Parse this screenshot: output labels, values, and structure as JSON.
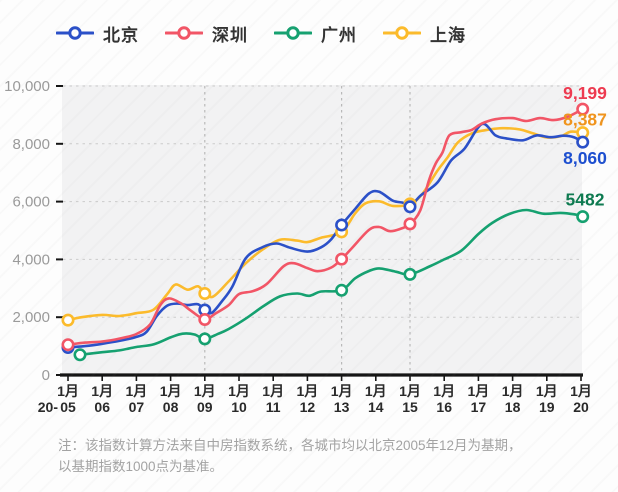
{
  "legend": [
    {
      "id": "beijing",
      "label": "北京",
      "color": "#2b50c8"
    },
    {
      "id": "shenzhen",
      "label": "深圳",
      "color": "#f25566"
    },
    {
      "id": "guangzhou",
      "label": "广州",
      "color": "#15a170"
    },
    {
      "id": "shanghai",
      "label": "上海",
      "color": "#fcbb2b"
    }
  ],
  "chart_data": {
    "type": "line",
    "title": "",
    "ylabel": "",
    "xlabel": "",
    "y_axis": {
      "range": [
        0,
        10000
      ],
      "ticks": [
        {
          "value": 0,
          "label": "0"
        },
        {
          "value": 2000,
          "label": "2,000"
        },
        {
          "value": 4000,
          "label": "4,000"
        },
        {
          "value": 6000,
          "label": "6,000"
        },
        {
          "value": 8000,
          "label": "8,000"
        },
        {
          "value": 10000,
          "label": "10,000"
        }
      ]
    },
    "x_axis": {
      "month_label": "1月",
      "prefix": "20-",
      "years": [
        "05",
        "06",
        "07",
        "08",
        "09",
        "10",
        "11",
        "12",
        "13",
        "14",
        "15",
        "16",
        "17",
        "18",
        "19",
        "20"
      ]
    },
    "vline_years": [
      2009,
      2013,
      2015
    ],
    "grid": "dashed",
    "legend_position": "top",
    "series": [
      {
        "id": "shanghai",
        "name": "上海",
        "color": "#fcbb2b",
        "label_color": "#f0941d",
        "end_label": "8,387",
        "end_value": 8387,
        "label_offset": -7,
        "points": [
          [
            2005,
            1900
          ],
          [
            2005.4,
            2000
          ],
          [
            2006,
            2080
          ],
          [
            2006.5,
            2040
          ],
          [
            2007,
            2140
          ],
          [
            2007.5,
            2260
          ],
          [
            2007.9,
            2800
          ],
          [
            2008.15,
            3130
          ],
          [
            2008.5,
            2950
          ],
          [
            2008.8,
            3070
          ],
          [
            2009,
            2820
          ],
          [
            2009.25,
            2720
          ],
          [
            2009.7,
            3240
          ],
          [
            2010.2,
            3870
          ],
          [
            2010.7,
            4350
          ],
          [
            2011.2,
            4680
          ],
          [
            2011.7,
            4650
          ],
          [
            2012,
            4600
          ],
          [
            2012.4,
            4750
          ],
          [
            2013,
            4950
          ],
          [
            2013.4,
            5600
          ],
          [
            2013.7,
            5940
          ],
          [
            2014.1,
            6010
          ],
          [
            2014.5,
            5850
          ],
          [
            2015,
            5920
          ],
          [
            2015.35,
            6250
          ],
          [
            2015.8,
            7070
          ],
          [
            2016.1,
            7530
          ],
          [
            2016.4,
            8050
          ],
          [
            2016.8,
            8360
          ],
          [
            2017.2,
            8470
          ],
          [
            2017.7,
            8540
          ],
          [
            2018.2,
            8500
          ],
          [
            2018.6,
            8360
          ],
          [
            2019,
            8220
          ],
          [
            2019.4,
            8260
          ],
          [
            2019.7,
            8420
          ],
          [
            2020.05,
            8387
          ]
        ],
        "markers": [
          [
            2005,
            1900
          ],
          [
            2009,
            2820
          ],
          [
            2013,
            4950
          ],
          [
            2015,
            5920
          ],
          [
            2020.05,
            8387
          ]
        ]
      },
      {
        "id": "guangzhou",
        "name": "广州",
        "color": "#15a170",
        "label_color": "#0d7a50",
        "end_label": "5482",
        "end_value": 5482,
        "label_offset": -11,
        "points": [
          [
            2005.35,
            700
          ],
          [
            2006,
            790
          ],
          [
            2006.5,
            850
          ],
          [
            2007,
            970
          ],
          [
            2007.5,
            1060
          ],
          [
            2008,
            1300
          ],
          [
            2008.35,
            1430
          ],
          [
            2008.7,
            1400
          ],
          [
            2009,
            1250
          ],
          [
            2009.4,
            1430
          ],
          [
            2009.7,
            1590
          ],
          [
            2010.2,
            1950
          ],
          [
            2010.7,
            2370
          ],
          [
            2011.2,
            2720
          ],
          [
            2011.7,
            2820
          ],
          [
            2012.05,
            2740
          ],
          [
            2012.4,
            2890
          ],
          [
            2013,
            2930
          ],
          [
            2013.4,
            3350
          ],
          [
            2013.8,
            3600
          ],
          [
            2014.1,
            3690
          ],
          [
            2014.6,
            3570
          ],
          [
            2015,
            3480
          ],
          [
            2015.6,
            3770
          ],
          [
            2016,
            4000
          ],
          [
            2016.5,
            4300
          ],
          [
            2017,
            4880
          ],
          [
            2017.4,
            5260
          ],
          [
            2017.9,
            5570
          ],
          [
            2018.4,
            5710
          ],
          [
            2018.9,
            5580
          ],
          [
            2019.4,
            5610
          ],
          [
            2019.8,
            5560
          ],
          [
            2020.05,
            5482
          ]
        ],
        "markers": [
          [
            2005.35,
            700
          ],
          [
            2009,
            1250
          ],
          [
            2013,
            2930
          ],
          [
            2015,
            3480
          ],
          [
            2020.05,
            5482
          ]
        ]
      },
      {
        "id": "beijing",
        "name": "北京",
        "color": "#2b50c8",
        "label_color": "#1d4fd0",
        "end_label": "8,060",
        "end_value": 8060,
        "label_offset": 22,
        "points": [
          [
            2005,
            950
          ],
          [
            2005.5,
            1000
          ],
          [
            2006,
            1080
          ],
          [
            2006.5,
            1180
          ],
          [
            2007,
            1320
          ],
          [
            2007.3,
            1500
          ],
          [
            2007.6,
            2050
          ],
          [
            2007.9,
            2400
          ],
          [
            2008.2,
            2470
          ],
          [
            2008.5,
            2420
          ],
          [
            2008.8,
            2450
          ],
          [
            2009,
            2250
          ],
          [
            2009.2,
            2150
          ],
          [
            2009.5,
            2550
          ],
          [
            2009.8,
            3050
          ],
          [
            2010.2,
            4040
          ],
          [
            2010.7,
            4430
          ],
          [
            2011.1,
            4550
          ],
          [
            2011.5,
            4400
          ],
          [
            2012,
            4270
          ],
          [
            2012.4,
            4420
          ],
          [
            2012.7,
            4700
          ],
          [
            2013,
            5190
          ],
          [
            2013.4,
            5750
          ],
          [
            2013.8,
            6280
          ],
          [
            2014.1,
            6340
          ],
          [
            2014.5,
            6030
          ],
          [
            2014.8,
            5960
          ],
          [
            2015,
            5820
          ],
          [
            2015.3,
            6200
          ],
          [
            2015.8,
            6660
          ],
          [
            2016.2,
            7420
          ],
          [
            2016.6,
            7840
          ],
          [
            2017.1,
            8680
          ],
          [
            2017.5,
            8290
          ],
          [
            2017.8,
            8190
          ],
          [
            2018.3,
            8120
          ],
          [
            2018.7,
            8290
          ],
          [
            2019.1,
            8230
          ],
          [
            2019.5,
            8280
          ],
          [
            2019.8,
            8220
          ],
          [
            2020.05,
            8060
          ]
        ],
        "markers": [
          [
            2005,
            950
          ],
          [
            2009,
            2250
          ],
          [
            2013,
            5190
          ],
          [
            2015,
            5820
          ],
          [
            2020.05,
            8060
          ]
        ]
      },
      {
        "id": "shenzhen",
        "name": "深圳",
        "color": "#f25566",
        "label_color": "#ee3a50",
        "end_label": "9,199",
        "end_value": 9199,
        "label_offset": -10,
        "points": [
          [
            2005,
            1050
          ],
          [
            2005.5,
            1120
          ],
          [
            2006,
            1160
          ],
          [
            2006.5,
            1260
          ],
          [
            2007,
            1420
          ],
          [
            2007.4,
            1750
          ],
          [
            2007.7,
            2420
          ],
          [
            2007.95,
            2650
          ],
          [
            2008.3,
            2480
          ],
          [
            2008.6,
            2220
          ],
          [
            2009,
            1920
          ],
          [
            2009.3,
            2120
          ],
          [
            2009.7,
            2420
          ],
          [
            2010,
            2800
          ],
          [
            2010.4,
            2900
          ],
          [
            2010.8,
            3140
          ],
          [
            2011.3,
            3760
          ],
          [
            2011.6,
            3870
          ],
          [
            2012,
            3700
          ],
          [
            2012.3,
            3590
          ],
          [
            2012.7,
            3720
          ],
          [
            2013,
            4010
          ],
          [
            2013.3,
            4390
          ],
          [
            2013.8,
            5020
          ],
          [
            2014.1,
            5120
          ],
          [
            2014.4,
            4980
          ],
          [
            2014.7,
            5050
          ],
          [
            2015,
            5230
          ],
          [
            2015.3,
            5700
          ],
          [
            2015.55,
            6720
          ],
          [
            2015.75,
            7320
          ],
          [
            2015.95,
            7700
          ],
          [
            2016.15,
            8290
          ],
          [
            2016.5,
            8400
          ],
          [
            2016.8,
            8480
          ],
          [
            2017.1,
            8700
          ],
          [
            2017.5,
            8850
          ],
          [
            2018,
            8890
          ],
          [
            2018.4,
            8790
          ],
          [
            2018.8,
            8890
          ],
          [
            2019.2,
            8820
          ],
          [
            2019.6,
            8930
          ],
          [
            2020.05,
            9199
          ]
        ],
        "markers": [
          [
            2005,
            1050
          ],
          [
            2009,
            1920
          ],
          [
            2013,
            4010
          ],
          [
            2015,
            5230
          ],
          [
            2020.05,
            9199
          ]
        ]
      }
    ]
  },
  "note": {
    "line1": "注：该指数计算方法来自中房指数系统，各城市均以北京2005年12月为基期，",
    "line2": "以基期指数1000点为基准。"
  }
}
